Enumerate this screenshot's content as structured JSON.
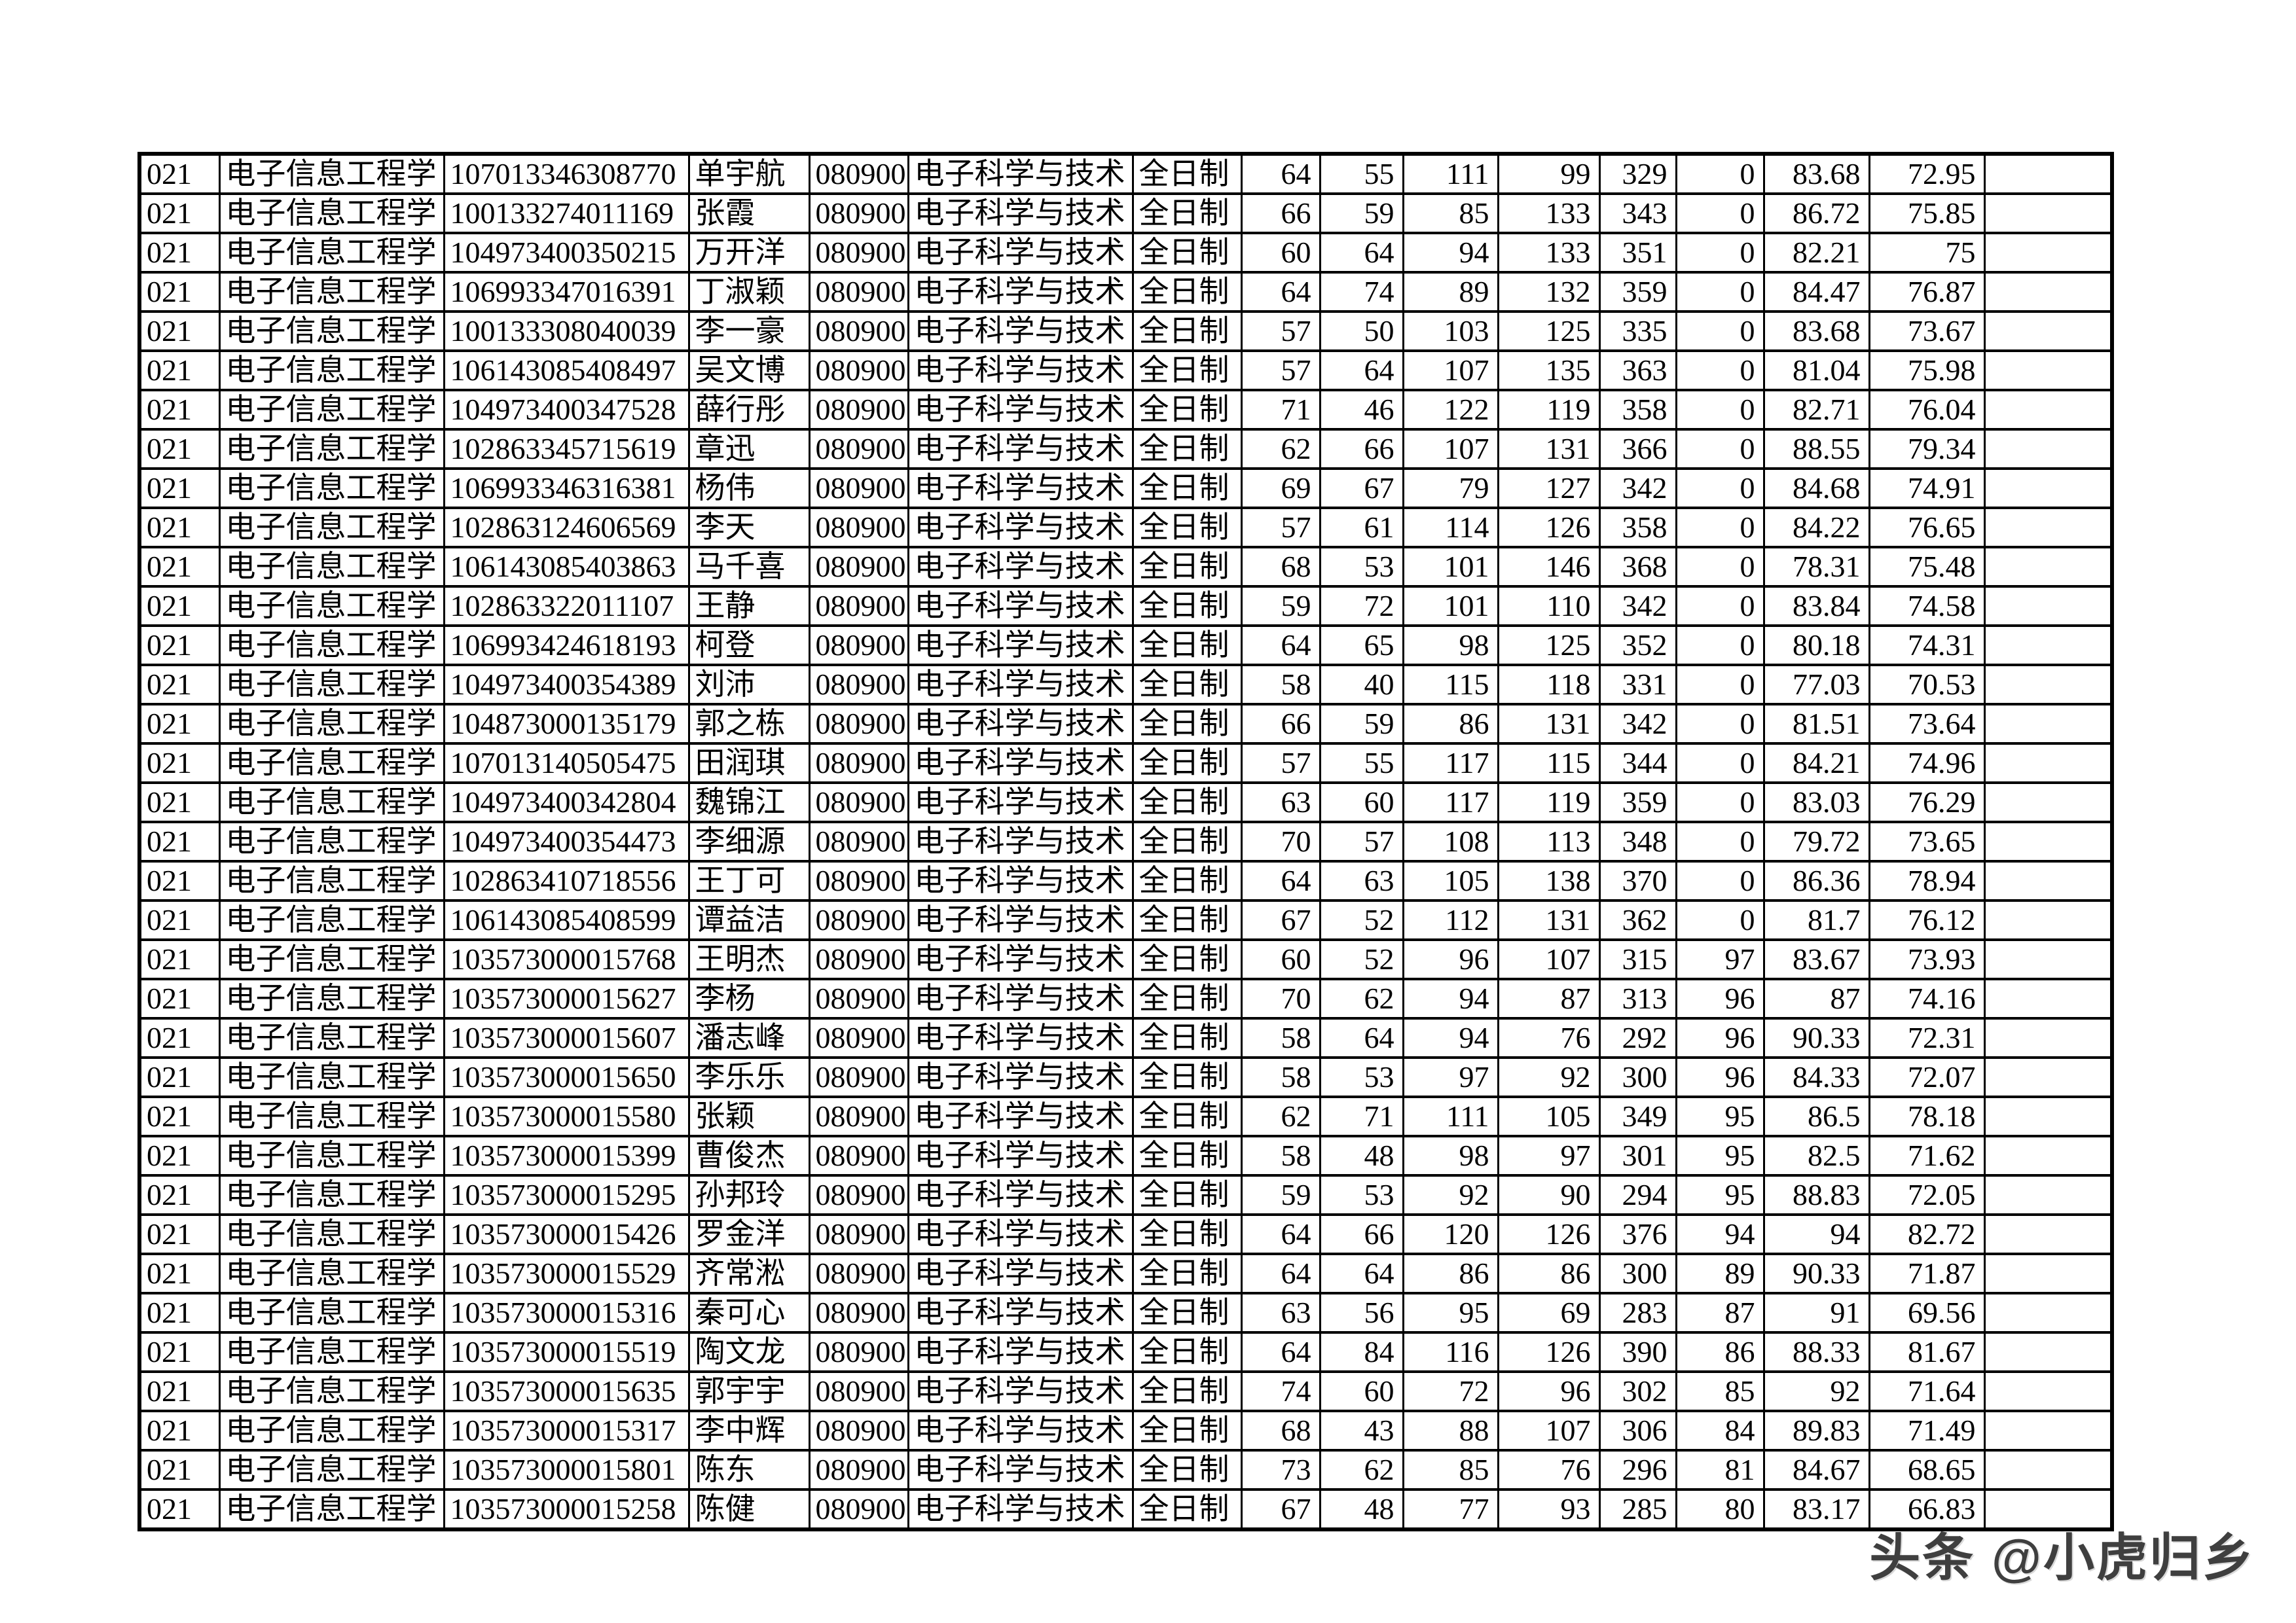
{
  "colors": {
    "background": "#ffffff",
    "border": "#000000",
    "text": "#000000",
    "watermark": "#3f3f3f"
  },
  "table": {
    "shared": {
      "unit_code": "021",
      "college": "电子信息工程学",
      "major_code": "080900",
      "major_name": "电子科学与技术",
      "study_mode": "全日制",
      "trailing_blank": ""
    },
    "rows": [
      {
        "candidate_id": "107013346308770",
        "name": "单宇航",
        "scores": [
          "64",
          "55",
          "111",
          "99",
          "329",
          "0",
          "83.68",
          "72.95"
        ]
      },
      {
        "candidate_id": "100133274011169",
        "name": "张霞",
        "scores": [
          "66",
          "59",
          "85",
          "133",
          "343",
          "0",
          "86.72",
          "75.85"
        ]
      },
      {
        "candidate_id": "104973400350215",
        "name": "万开洋",
        "scores": [
          "60",
          "64",
          "94",
          "133",
          "351",
          "0",
          "82.21",
          "75"
        ]
      },
      {
        "candidate_id": "106993347016391",
        "name": "丁淑颖",
        "scores": [
          "64",
          "74",
          "89",
          "132",
          "359",
          "0",
          "84.47",
          "76.87"
        ]
      },
      {
        "candidate_id": "100133308040039",
        "name": "李一豪",
        "scores": [
          "57",
          "50",
          "103",
          "125",
          "335",
          "0",
          "83.68",
          "73.67"
        ]
      },
      {
        "candidate_id": "106143085408497",
        "name": "吴文博",
        "scores": [
          "57",
          "64",
          "107",
          "135",
          "363",
          "0",
          "81.04",
          "75.98"
        ]
      },
      {
        "candidate_id": "104973400347528",
        "name": "薛行彤",
        "scores": [
          "71",
          "46",
          "122",
          "119",
          "358",
          "0",
          "82.71",
          "76.04"
        ]
      },
      {
        "candidate_id": "102863345715619",
        "name": "章迅",
        "scores": [
          "62",
          "66",
          "107",
          "131",
          "366",
          "0",
          "88.55",
          "79.34"
        ]
      },
      {
        "candidate_id": "106993346316381",
        "name": "杨伟",
        "scores": [
          "69",
          "67",
          "79",
          "127",
          "342",
          "0",
          "84.68",
          "74.91"
        ]
      },
      {
        "candidate_id": "102863124606569",
        "name": "李天",
        "scores": [
          "57",
          "61",
          "114",
          "126",
          "358",
          "0",
          "84.22",
          "76.65"
        ]
      },
      {
        "candidate_id": "106143085403863",
        "name": "马千喜",
        "scores": [
          "68",
          "53",
          "101",
          "146",
          "368",
          "0",
          "78.31",
          "75.48"
        ]
      },
      {
        "candidate_id": "102863322011107",
        "name": "王静",
        "scores": [
          "59",
          "72",
          "101",
          "110",
          "342",
          "0",
          "83.84",
          "74.58"
        ]
      },
      {
        "candidate_id": "106993424618193",
        "name": "柯登",
        "scores": [
          "64",
          "65",
          "98",
          "125",
          "352",
          "0",
          "80.18",
          "74.31"
        ]
      },
      {
        "candidate_id": "104973400354389",
        "name": "刘沛",
        "scores": [
          "58",
          "40",
          "115",
          "118",
          "331",
          "0",
          "77.03",
          "70.53"
        ]
      },
      {
        "candidate_id": "104873000135179",
        "name": "郭之栋",
        "scores": [
          "66",
          "59",
          "86",
          "131",
          "342",
          "0",
          "81.51",
          "73.64"
        ]
      },
      {
        "candidate_id": "107013140505475",
        "name": "田润琪",
        "scores": [
          "57",
          "55",
          "117",
          "115",
          "344",
          "0",
          "84.21",
          "74.96"
        ]
      },
      {
        "candidate_id": "104973400342804",
        "name": "魏锦江",
        "scores": [
          "63",
          "60",
          "117",
          "119",
          "359",
          "0",
          "83.03",
          "76.29"
        ]
      },
      {
        "candidate_id": "104973400354473",
        "name": "李细源",
        "scores": [
          "70",
          "57",
          "108",
          "113",
          "348",
          "0",
          "79.72",
          "73.65"
        ]
      },
      {
        "candidate_id": "102863410718556",
        "name": "王丁可",
        "scores": [
          "64",
          "63",
          "105",
          "138",
          "370",
          "0",
          "86.36",
          "78.94"
        ]
      },
      {
        "candidate_id": "106143085408599",
        "name": "谭益洁",
        "scores": [
          "67",
          "52",
          "112",
          "131",
          "362",
          "0",
          "81.7",
          "76.12"
        ]
      },
      {
        "candidate_id": "103573000015768",
        "name": "王明杰",
        "scores": [
          "60",
          "52",
          "96",
          "107",
          "315",
          "97",
          "83.67",
          "73.93"
        ]
      },
      {
        "candidate_id": "103573000015627",
        "name": "李杨",
        "scores": [
          "70",
          "62",
          "94",
          "87",
          "313",
          "96",
          "87",
          "74.16"
        ]
      },
      {
        "candidate_id": "103573000015607",
        "name": "潘志峰",
        "scores": [
          "58",
          "64",
          "94",
          "76",
          "292",
          "96",
          "90.33",
          "72.31"
        ]
      },
      {
        "candidate_id": "103573000015650",
        "name": "李乐乐",
        "scores": [
          "58",
          "53",
          "97",
          "92",
          "300",
          "96",
          "84.33",
          "72.07"
        ]
      },
      {
        "candidate_id": "103573000015580",
        "name": "张颖",
        "scores": [
          "62",
          "71",
          "111",
          "105",
          "349",
          "95",
          "86.5",
          "78.18"
        ]
      },
      {
        "candidate_id": "103573000015399",
        "name": "曹俊杰",
        "scores": [
          "58",
          "48",
          "98",
          "97",
          "301",
          "95",
          "82.5",
          "71.62"
        ]
      },
      {
        "candidate_id": "103573000015295",
        "name": "孙邦玲",
        "scores": [
          "59",
          "53",
          "92",
          "90",
          "294",
          "95",
          "88.83",
          "72.05"
        ]
      },
      {
        "candidate_id": "103573000015426",
        "name": "罗金洋",
        "scores": [
          "64",
          "66",
          "120",
          "126",
          "376",
          "94",
          "94",
          "82.72"
        ]
      },
      {
        "candidate_id": "103573000015529",
        "name": "齐常淞",
        "scores": [
          "64",
          "64",
          "86",
          "86",
          "300",
          "89",
          "90.33",
          "71.87"
        ]
      },
      {
        "candidate_id": "103573000015316",
        "name": "秦可心",
        "scores": [
          "63",
          "56",
          "95",
          "69",
          "283",
          "87",
          "91",
          "69.56"
        ]
      },
      {
        "candidate_id": "103573000015519",
        "name": "陶文龙",
        "scores": [
          "64",
          "84",
          "116",
          "126",
          "390",
          "86",
          "88.33",
          "81.67"
        ]
      },
      {
        "candidate_id": "103573000015635",
        "name": "郭宇宇",
        "scores": [
          "74",
          "60",
          "72",
          "96",
          "302",
          "85",
          "92",
          "71.64"
        ]
      },
      {
        "candidate_id": "103573000015317",
        "name": "李中辉",
        "scores": [
          "68",
          "43",
          "88",
          "107",
          "306",
          "84",
          "89.83",
          "71.49"
        ]
      },
      {
        "candidate_id": "103573000015801",
        "name": "陈东",
        "scores": [
          "73",
          "62",
          "85",
          "76",
          "296",
          "81",
          "84.67",
          "68.65"
        ]
      },
      {
        "candidate_id": "103573000015258",
        "name": "陈健",
        "scores": [
          "67",
          "48",
          "77",
          "93",
          "285",
          "80",
          "83.17",
          "66.83"
        ]
      }
    ]
  },
  "watermark": {
    "text": "头条 @小虎归乡"
  }
}
